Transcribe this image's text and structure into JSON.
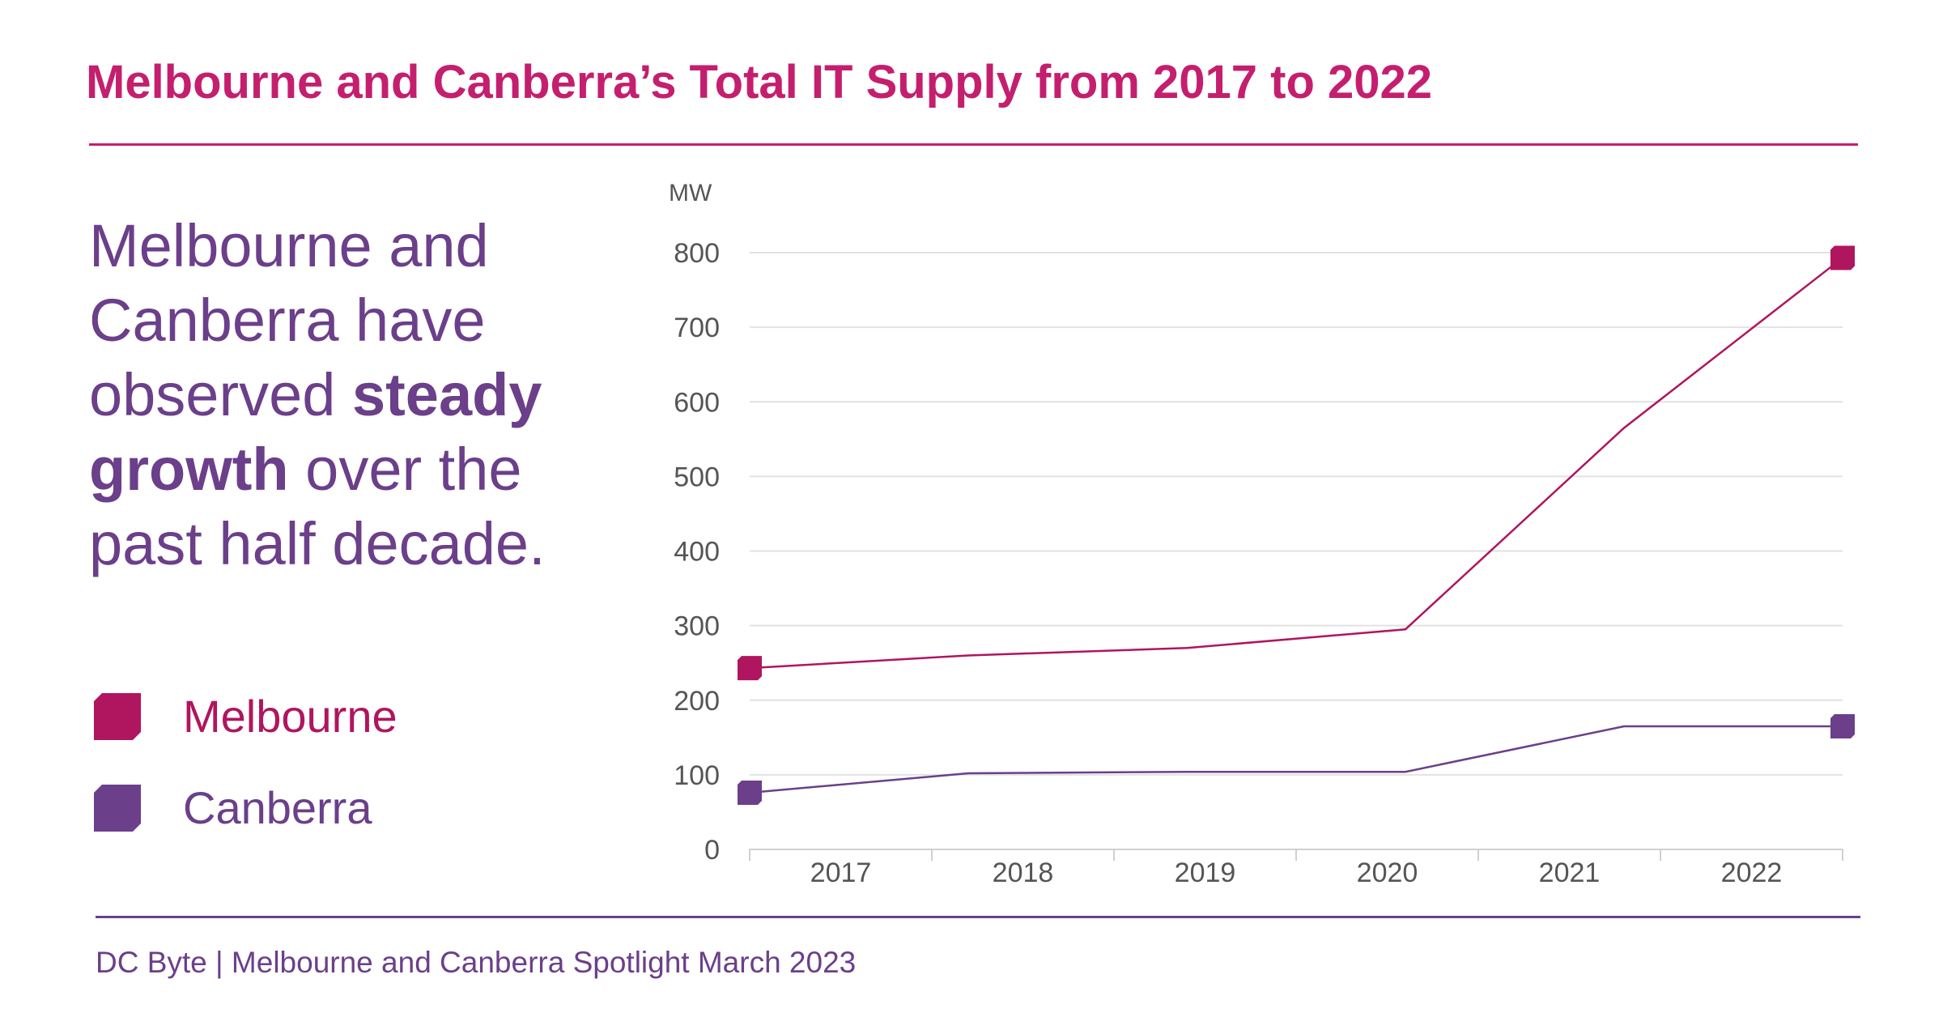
{
  "title": "Melbourne and Canberra’s Total IT Supply from 2017 to 2022",
  "headline": {
    "line1": "Melbourne and",
    "line2": "Canberra have",
    "line3_pre": "observed ",
    "line3_bold": "steady",
    "line4_bold": "growth",
    "line4_post": " over the",
    "line5": "past half decade."
  },
  "legend": [
    {
      "label": "Melbourne",
      "color": "#b0155f"
    },
    {
      "label": "Canberra",
      "color": "#6b3f8a"
    }
  ],
  "footer": "DC Byte | Melbourne and Canberra Spotlight March 2023",
  "colors": {
    "title": "#c41f6e",
    "text": "#6b3f8a",
    "melbourne": "#b0155f",
    "canberra": "#6b3f8a",
    "grid": "#e2e2e2"
  },
  "chart_data": {
    "type": "line",
    "x": [
      "2017",
      "2018",
      "2019",
      "2020",
      "2021",
      "2022"
    ],
    "ylabel": "MW",
    "ylim": [
      0,
      800
    ],
    "yticks": [
      "0",
      "100",
      "200",
      "300",
      "400",
      "500",
      "600",
      "700",
      "800"
    ],
    "grid": true,
    "series": [
      {
        "name": "Melbourne",
        "color": "#b0155f",
        "values": [
          243,
          260,
          270,
          295,
          565,
          793
        ]
      },
      {
        "name": "Canberra",
        "color": "#6b3f8a",
        "values": [
          76,
          102,
          104,
          104,
          165,
          165
        ]
      }
    ]
  }
}
